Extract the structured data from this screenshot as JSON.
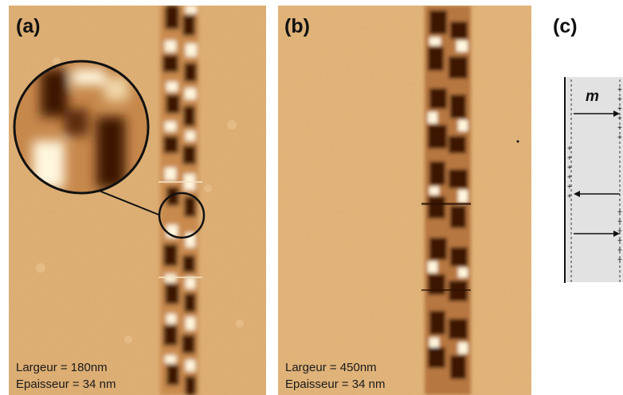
{
  "figure": {
    "panels": [
      {
        "id": "a",
        "label": "(a)",
        "width_line": "Largeur = 180nm",
        "thickness_line": "Epaisseur = 34 nm"
      },
      {
        "id": "b",
        "label": "(b)",
        "width_line": "Largeur = 450nm",
        "thickness_line": "Epaisseur = 34 nm"
      },
      {
        "id": "c",
        "label": "(c)",
        "magnetization_symbol": "m"
      }
    ],
    "colors": {
      "background": "#d9a668",
      "dark_contrast": "#3d1604",
      "bright_contrast": "#fff6de",
      "diagram_fill": "#e2e2e2"
    }
  }
}
